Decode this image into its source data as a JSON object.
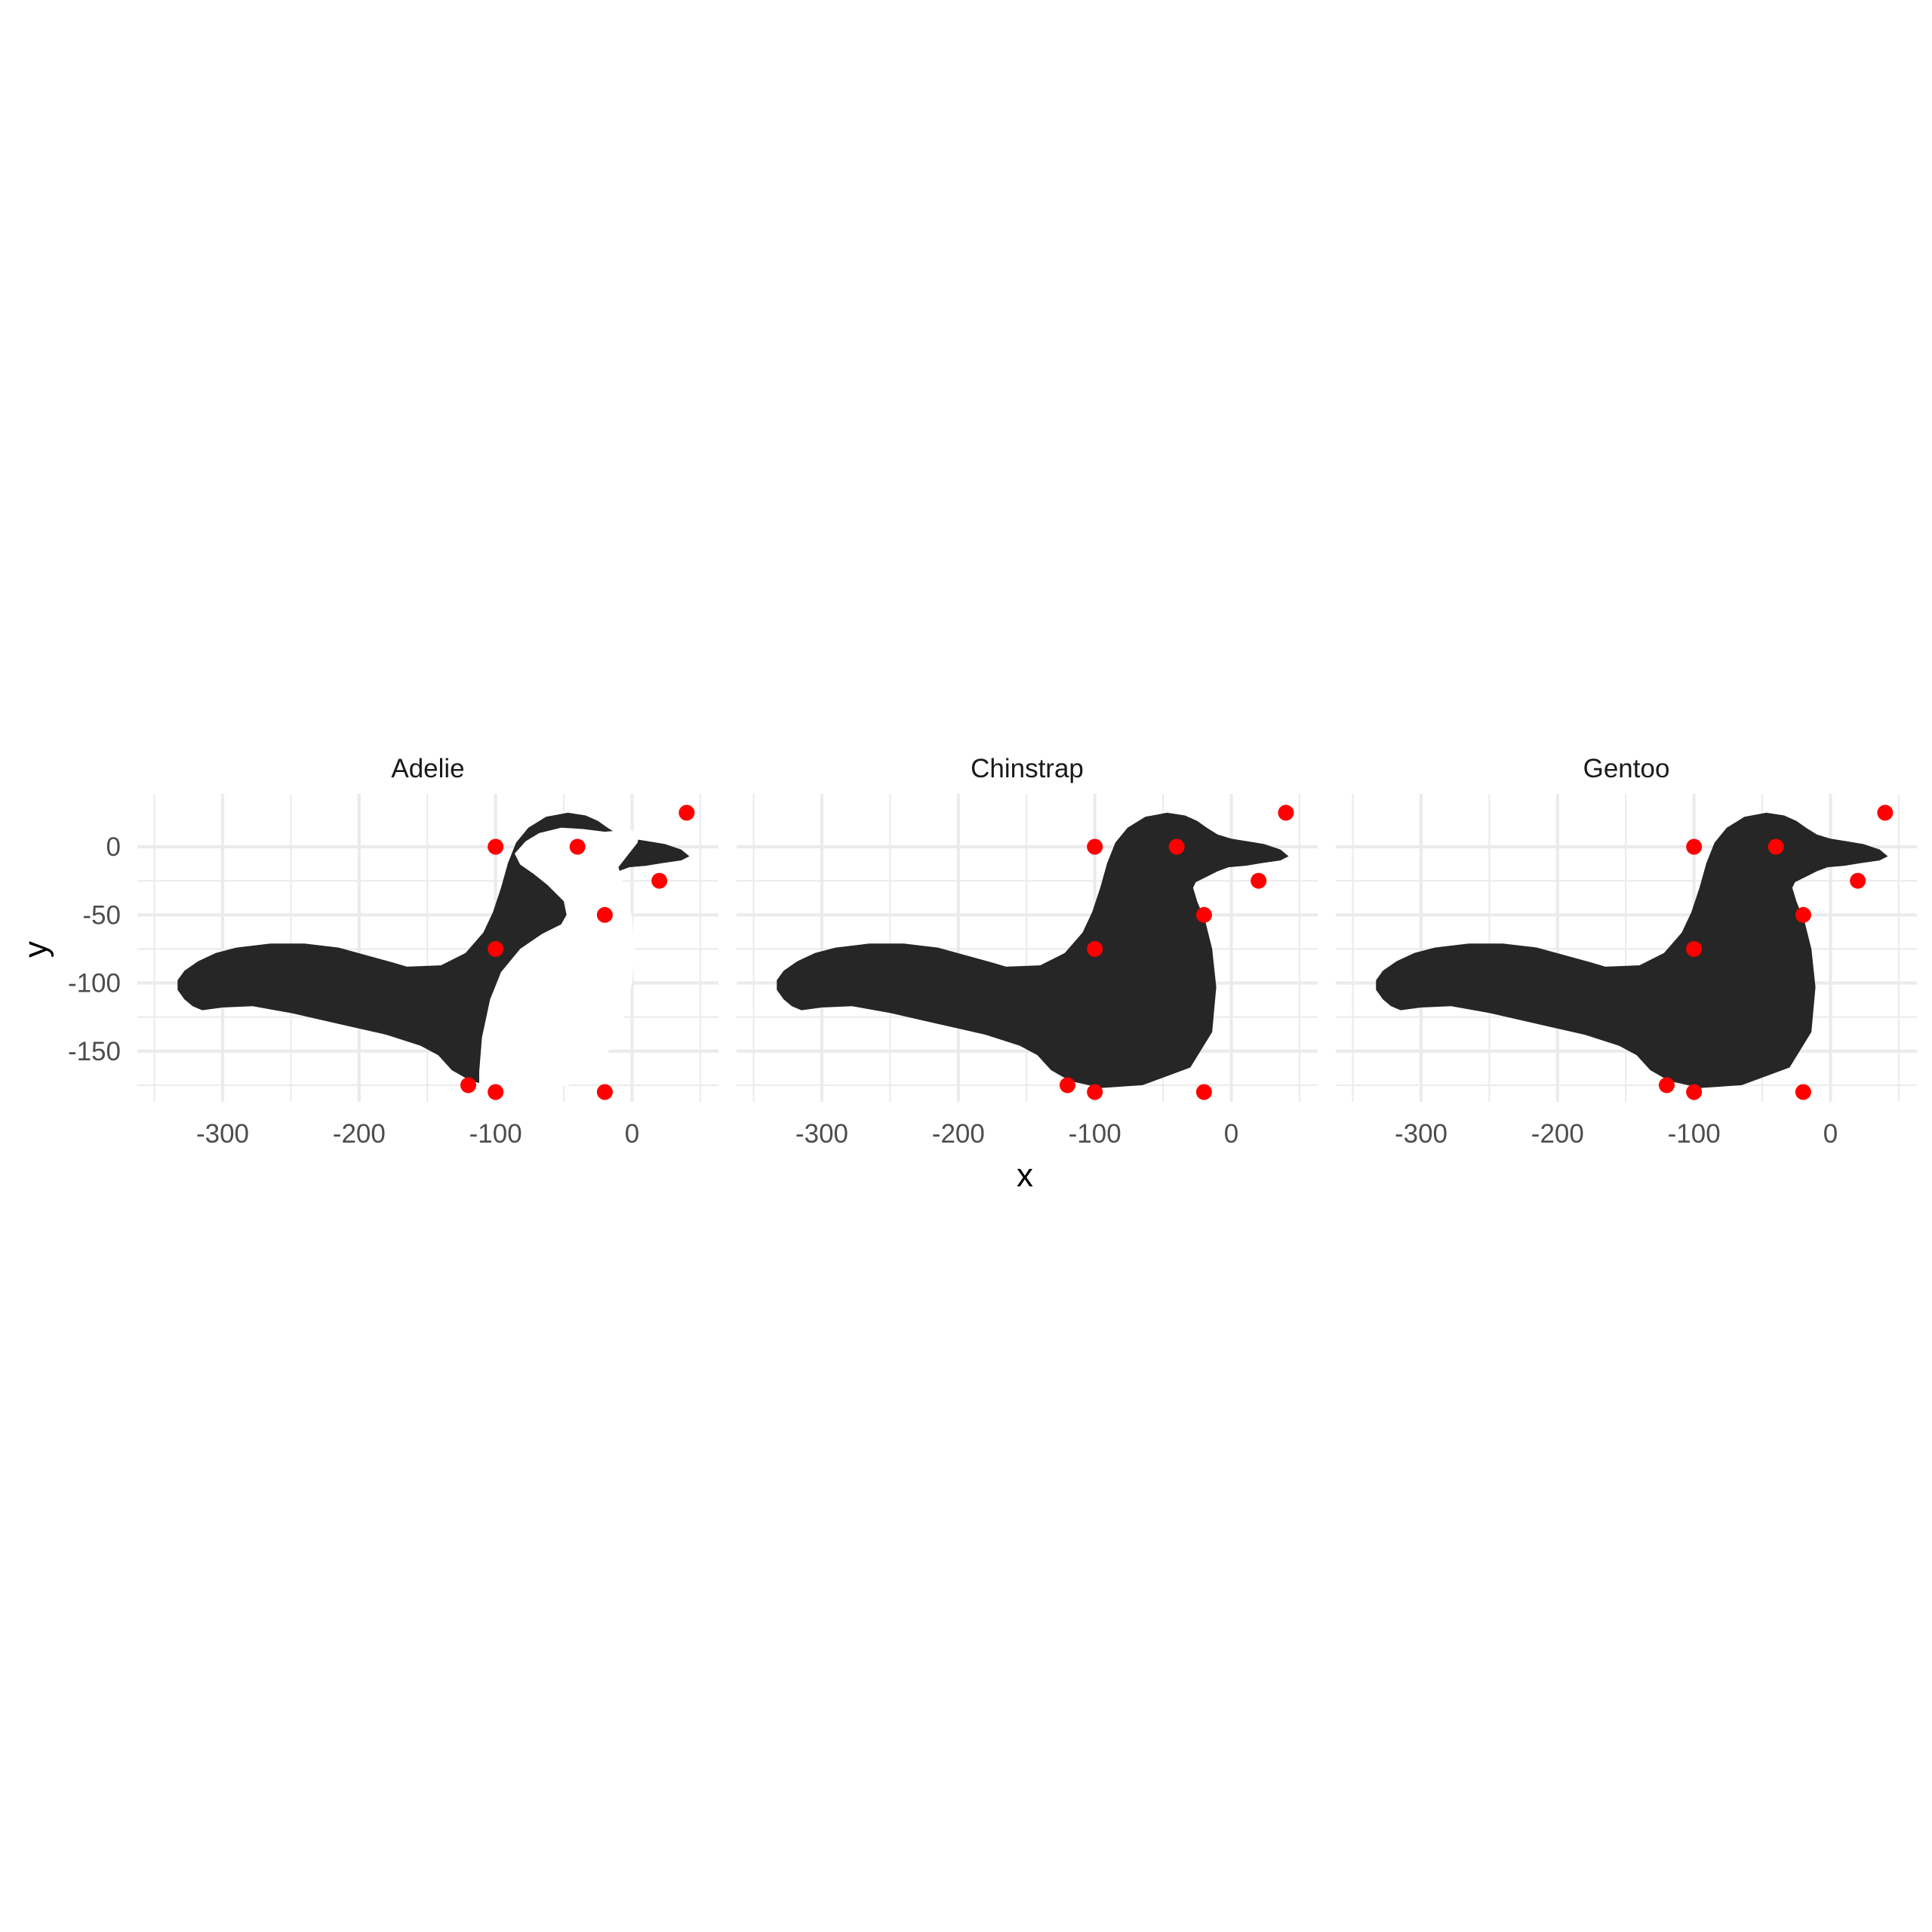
{
  "chart_data": {
    "type": "scatter",
    "xlabel": "x",
    "ylabel": "y",
    "xlim": [
      -350,
      65
    ],
    "ylim": [
      -180,
      25
    ],
    "x_ticks": [
      -300,
      -200,
      -100,
      0
    ],
    "y_ticks": [
      0,
      -50,
      -100,
      -150
    ],
    "x_tick_labels": [
      "-300",
      "-200",
      "-100",
      "0"
    ],
    "y_tick_labels": [
      "0",
      "-50",
      "-100",
      "-150"
    ],
    "grid": true,
    "colors": {
      "points": "#ff0000",
      "silhouette": "#262626",
      "belly": "#ffffff",
      "grid": "#ebebeb"
    },
    "panels": [
      {
        "facet": "Adelie",
        "belly_patch": true,
        "points": [
          {
            "x": -100,
            "y": 0
          },
          {
            "x": -40,
            "y": 0
          },
          {
            "x": 40,
            "y": 25
          },
          {
            "x": 20,
            "y": -25
          },
          {
            "x": -20,
            "y": -50
          },
          {
            "x": -100,
            "y": -75
          },
          {
            "x": -120,
            "y": -175
          },
          {
            "x": -100,
            "y": -180
          },
          {
            "x": -20,
            "y": -180
          }
        ]
      },
      {
        "facet": "Chinstrap",
        "belly_patch": false,
        "points": [
          {
            "x": -100,
            "y": 0
          },
          {
            "x": -40,
            "y": 0
          },
          {
            "x": 40,
            "y": 25
          },
          {
            "x": 20,
            "y": -25
          },
          {
            "x": -20,
            "y": -50
          },
          {
            "x": -100,
            "y": -75
          },
          {
            "x": -120,
            "y": -175
          },
          {
            "x": -100,
            "y": -180
          },
          {
            "x": -20,
            "y": -180
          }
        ]
      },
      {
        "facet": "Gentoo",
        "belly_patch": false,
        "points": [
          {
            "x": -100,
            "y": 0
          },
          {
            "x": -40,
            "y": 0
          },
          {
            "x": 40,
            "y": 25
          },
          {
            "x": 20,
            "y": -25
          },
          {
            "x": -20,
            "y": -50
          },
          {
            "x": -100,
            "y": -75
          },
          {
            "x": -120,
            "y": -175
          },
          {
            "x": -100,
            "y": -180
          },
          {
            "x": -20,
            "y": -180
          }
        ]
      }
    ]
  }
}
